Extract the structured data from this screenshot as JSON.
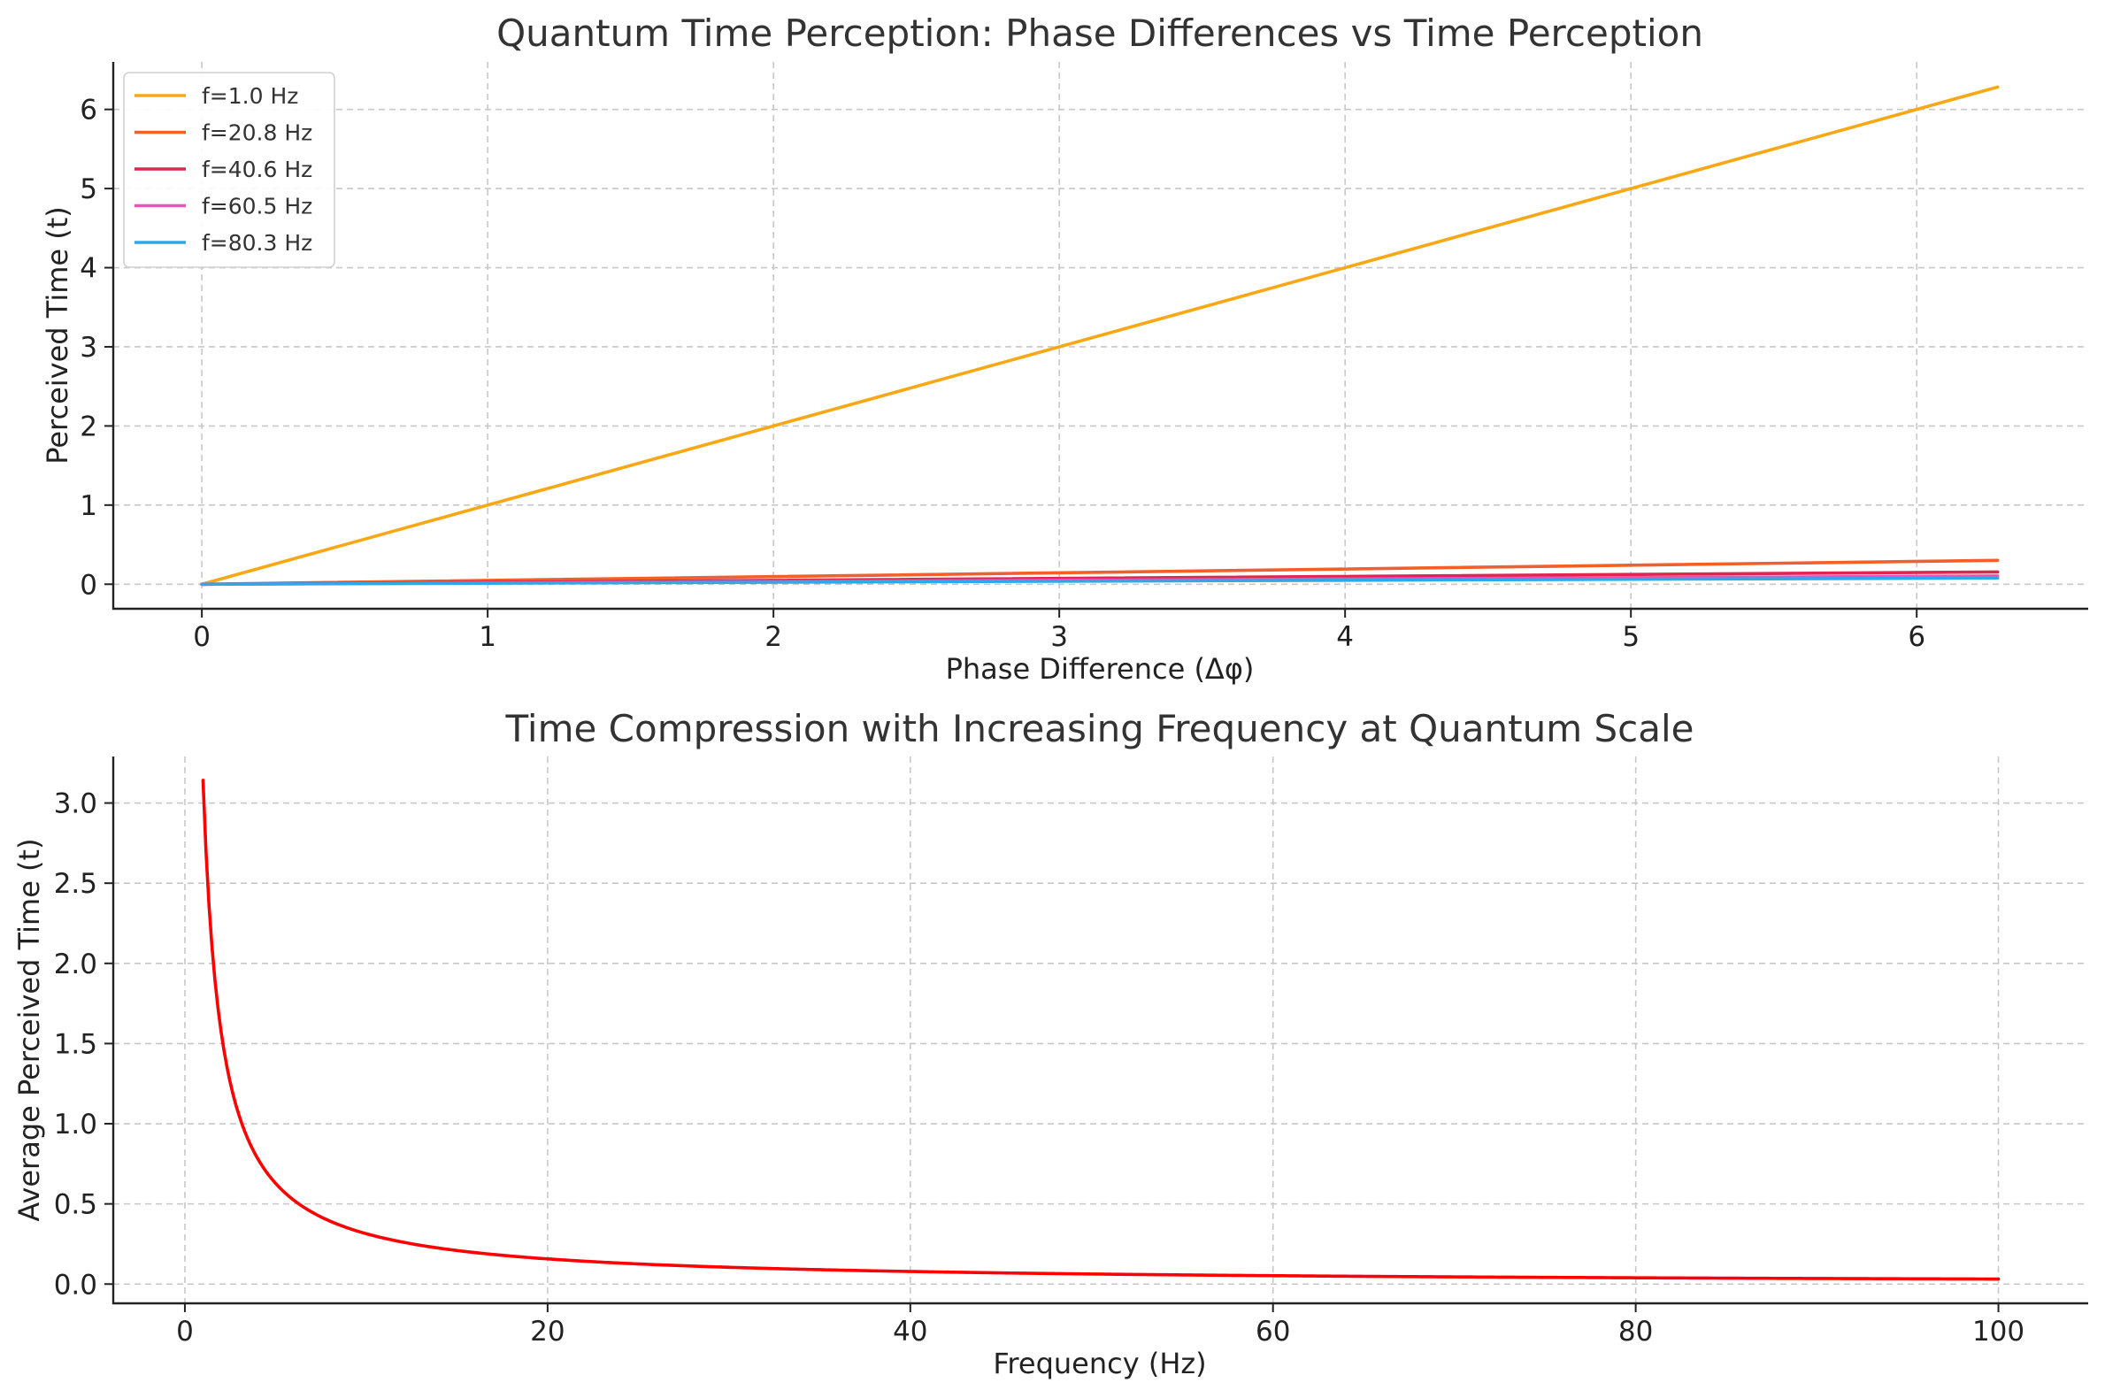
{
  "chart_data": [
    {
      "type": "line",
      "title": "Quantum Time Perception: Phase Differences vs Time Perception",
      "xlabel": "Phase Difference (Δφ)",
      "ylabel": "Perceived Time (t)",
      "xlim": [
        -0.31,
        6.6
      ],
      "ylim": [
        -0.31,
        6.6
      ],
      "xticks": [
        0,
        1,
        2,
        3,
        4,
        5,
        6
      ],
      "xtick_labels": [
        "0",
        "1",
        "2",
        "3",
        "4",
        "5",
        "6"
      ],
      "yticks": [
        0,
        1,
        2,
        3,
        4,
        5,
        6
      ],
      "ytick_labels": [
        "0",
        "1",
        "2",
        "3",
        "4",
        "5",
        "6"
      ],
      "grid": true,
      "legend": "upper left",
      "x": [
        0,
        6.2832
      ],
      "series": [
        {
          "name": "f=1.0 Hz",
          "color": "#F8A814",
          "values": [
            0,
            6.2832
          ]
        },
        {
          "name": "f=20.8 Hz",
          "color": "#F1602A",
          "values": [
            0,
            0.302
          ]
        },
        {
          "name": "f=40.6 Hz",
          "color": "#E0264E",
          "values": [
            0,
            0.1548
          ]
        },
        {
          "name": "f=60.5 Hz",
          "color": "#F04FB8",
          "values": [
            0,
            0.1039
          ]
        },
        {
          "name": "f=80.3 Hz",
          "color": "#2FA8E8",
          "values": [
            0,
            0.0782
          ]
        }
      ]
    },
    {
      "type": "line",
      "title": "Time Compression with Increasing Frequency at Quantum Scale",
      "xlabel": "Frequency (Hz)",
      "ylabel": "Average Perceived Time (t)",
      "xlim": [
        -3.95,
        104.95
      ],
      "ylim": [
        -0.12,
        3.29
      ],
      "xticks": [
        0,
        20,
        40,
        60,
        80,
        100
      ],
      "xtick_labels": [
        "0",
        "20",
        "40",
        "60",
        "80",
        "100"
      ],
      "yticks": [
        0,
        0.5,
        1,
        1.5,
        2,
        2.5,
        3
      ],
      "ytick_labels": [
        "0.0",
        "0.5",
        "1.0",
        "1.5",
        "2.0",
        "2.5",
        "3.0"
      ],
      "grid": true,
      "series": [
        {
          "name": "",
          "color": "#FF0000",
          "x_start": 1,
          "x_end": 100,
          "relation": "t = 3.1416 / f"
        }
      ]
    }
  ]
}
